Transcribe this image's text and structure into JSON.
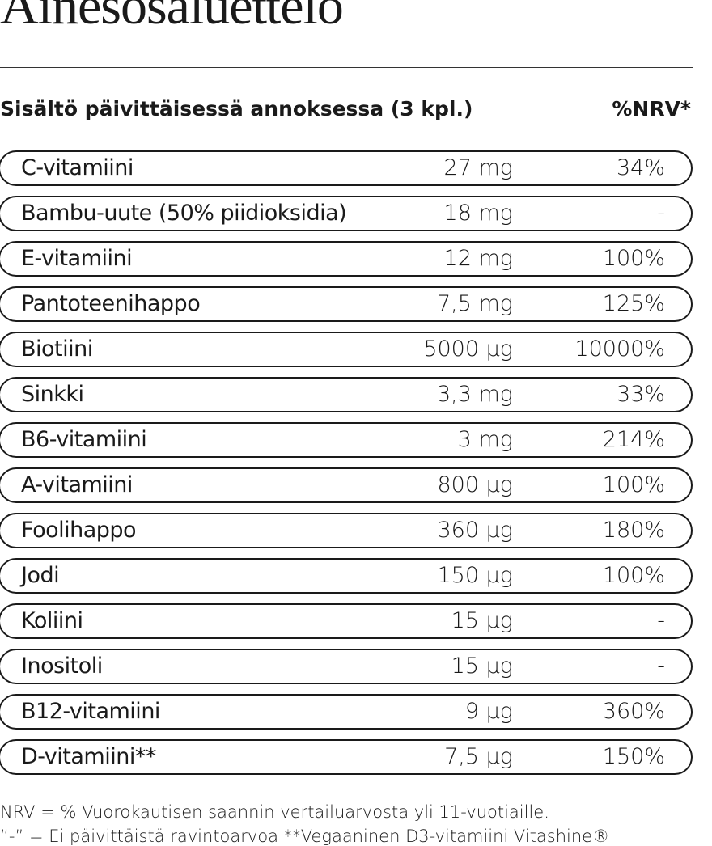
{
  "header": {
    "title": "Ainesosaluettelo"
  },
  "table": {
    "header": [
      "Sisältö päivittäisessä annoksessa (3 kpl.)",
      "%NRV*"
    ],
    "rows": [
      [
        "C-vitamiini",
        "27 mg",
        "34%"
      ],
      [
        "Bambu-uute (50% piidioksidia)",
        "18 mg",
        "-"
      ],
      [
        "E-vitamiini",
        "12 mg",
        "100%"
      ],
      [
        "Pantoteenihappo",
        "7,5 mg",
        "125%"
      ],
      [
        "Biotiini",
        "5000 µg",
        "10000%"
      ],
      [
        "Sinkki",
        "3,3 mg",
        "33%"
      ],
      [
        "B6-vitamiini",
        "3 mg",
        "214%"
      ],
      [
        "A-vitamiini",
        "800 µg",
        "100%"
      ],
      [
        "Foolihappo",
        "360 µg",
        "180%"
      ],
      [
        "Jodi",
        "150 µg",
        "100%"
      ],
      [
        "Koliini",
        "15 µg",
        "-"
      ],
      [
        "Inositoli",
        "15 µg",
        "-"
      ],
      [
        "B12-vitamiini",
        "9 µg",
        "360%"
      ],
      [
        "D-vitamiini**",
        "7,5 µg",
        "150%"
      ]
    ]
  },
  "footnotes": [
    "NRV = % Vuorokautisen saannin vertailuarvosta yli 11-vuotiaille.",
    "”-” = Ei päivittäistä ravintoarvoa **Vegaaninen D3-vitamiini Vitashine®"
  ]
}
